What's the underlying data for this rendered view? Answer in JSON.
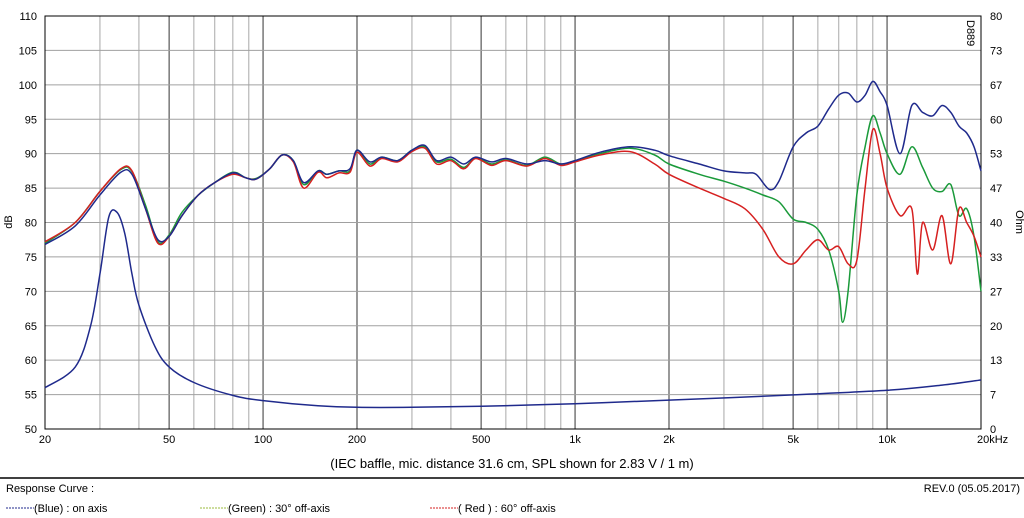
{
  "chart_data": {
    "type": "line",
    "x_scale": "log",
    "caption": "(IEC baffle, mic. distance 31.6 cm, SPL shown for 2.83 V / 1 m)",
    "watermark": "D889",
    "xlim": [
      20,
      20000
    ],
    "ylim_left": [
      50,
      110
    ],
    "ylim_right": [
      0,
      80
    ],
    "ylabel_left": "dB",
    "ylabel_right": "Ohm",
    "grid": true,
    "x_ticks": [
      {
        "value": 20,
        "label": "20"
      },
      {
        "value": 50,
        "label": "50"
      },
      {
        "value": 100,
        "label": "100"
      },
      {
        "value": 200,
        "label": "200"
      },
      {
        "value": 500,
        "label": "500"
      },
      {
        "value": 1000,
        "label": "1k"
      },
      {
        "value": 2000,
        "label": "2k"
      },
      {
        "value": 5000,
        "label": "5k"
      },
      {
        "value": 10000,
        "label": "10k"
      },
      {
        "value": 20000,
        "label": "20kHz"
      }
    ],
    "y_ticks_left": [
      "110",
      "105",
      "100",
      "95",
      "90",
      "85",
      "80",
      "75",
      "70",
      "65",
      "60",
      "55",
      "50"
    ],
    "y_ticks_right": [
      "80",
      "73",
      "67",
      "60",
      "53",
      "47",
      "40",
      "33",
      "27",
      "20",
      "13",
      "7",
      "0"
    ],
    "series": [
      {
        "name": "(Blue) : on axis",
        "color": "#1f2a8c",
        "axis": "left",
        "points": [
          [
            20,
            76.8
          ],
          [
            25,
            79.5
          ],
          [
            30,
            84
          ],
          [
            35,
            87.3
          ],
          [
            38,
            87
          ],
          [
            42,
            82
          ],
          [
            46,
            77.5
          ],
          [
            50,
            78
          ],
          [
            55,
            81
          ],
          [
            62,
            84
          ],
          [
            70,
            85.8
          ],
          [
            80,
            87.2
          ],
          [
            88,
            86.5
          ],
          [
            95,
            86.3
          ],
          [
            105,
            87.8
          ],
          [
            115,
            89.8
          ],
          [
            125,
            89
          ],
          [
            135,
            85.8
          ],
          [
            150,
            87.5
          ],
          [
            160,
            87
          ],
          [
            175,
            87.5
          ],
          [
            190,
            87.8
          ],
          [
            200,
            90.5
          ],
          [
            220,
            88.8
          ],
          [
            240,
            89.5
          ],
          [
            270,
            89
          ],
          [
            300,
            90.5
          ],
          [
            330,
            91.2
          ],
          [
            360,
            89
          ],
          [
            400,
            89.5
          ],
          [
            440,
            88.5
          ],
          [
            480,
            89.5
          ],
          [
            540,
            88.8
          ],
          [
            600,
            89.3
          ],
          [
            700,
            88.5
          ],
          [
            800,
            89
          ],
          [
            900,
            88.5
          ],
          [
            1000,
            89
          ],
          [
            1200,
            90.2
          ],
          [
            1500,
            91
          ],
          [
            1800,
            90.5
          ],
          [
            2000,
            89.7
          ],
          [
            2500,
            88.5
          ],
          [
            3000,
            87.5
          ],
          [
            3500,
            87.2
          ],
          [
            3800,
            87
          ],
          [
            4200,
            84.8
          ],
          [
            4500,
            86
          ],
          [
            5000,
            91
          ],
          [
            5500,
            93
          ],
          [
            6000,
            94
          ],
          [
            6500,
            96.5
          ],
          [
            7000,
            98.5
          ],
          [
            7500,
            98.8
          ],
          [
            8000,
            97.5
          ],
          [
            8500,
            98.5
          ],
          [
            9000,
            100.5
          ],
          [
            9500,
            99
          ],
          [
            10000,
            97
          ],
          [
            11000,
            90
          ],
          [
            12000,
            97
          ],
          [
            13000,
            96
          ],
          [
            14000,
            95.5
          ],
          [
            15000,
            97
          ],
          [
            16000,
            96
          ],
          [
            17000,
            94
          ],
          [
            18000,
            93
          ],
          [
            19000,
            91
          ],
          [
            20000,
            87.5
          ]
        ]
      },
      {
        "name": "(Green) : 30° off-axis",
        "color": "#1a9a3a",
        "axis": "left",
        "points": [
          [
            20,
            77
          ],
          [
            25,
            80
          ],
          [
            30,
            84.5
          ],
          [
            35,
            87.7
          ],
          [
            38,
            87.4
          ],
          [
            42,
            82.5
          ],
          [
            46,
            77.2
          ],
          [
            50,
            78.2
          ],
          [
            55,
            81.5
          ],
          [
            62,
            84
          ],
          [
            70,
            85.8
          ],
          [
            80,
            87.3
          ],
          [
            88,
            86.5
          ],
          [
            95,
            86.4
          ],
          [
            105,
            87.8
          ],
          [
            115,
            89.8
          ],
          [
            125,
            89
          ],
          [
            135,
            85.5
          ],
          [
            150,
            87.5
          ],
          [
            160,
            87
          ],
          [
            175,
            87.5
          ],
          [
            190,
            87.5
          ],
          [
            200,
            90.5
          ],
          [
            220,
            88.5
          ],
          [
            240,
            89.5
          ],
          [
            270,
            89
          ],
          [
            300,
            90.5
          ],
          [
            330,
            91
          ],
          [
            360,
            88.8
          ],
          [
            400,
            89.2
          ],
          [
            440,
            88
          ],
          [
            480,
            89.4
          ],
          [
            540,
            88.5
          ],
          [
            600,
            89.1
          ],
          [
            700,
            88.3
          ],
          [
            800,
            89.5
          ],
          [
            900,
            88.5
          ],
          [
            1000,
            89
          ],
          [
            1200,
            90
          ],
          [
            1500,
            90.8
          ],
          [
            1800,
            89.8
          ],
          [
            2000,
            88.5
          ],
          [
            2500,
            87
          ],
          [
            3000,
            86
          ],
          [
            3500,
            85
          ],
          [
            4000,
            84
          ],
          [
            4500,
            83
          ],
          [
            5000,
            80.5
          ],
          [
            5500,
            80
          ],
          [
            6000,
            79
          ],
          [
            6500,
            76
          ],
          [
            7000,
            70
          ],
          [
            7200,
            65.5
          ],
          [
            7500,
            70
          ],
          [
            8000,
            84
          ],
          [
            8500,
            91
          ],
          [
            9000,
            95.5
          ],
          [
            9500,
            93
          ],
          [
            10000,
            90
          ],
          [
            11000,
            87
          ],
          [
            12000,
            91
          ],
          [
            13000,
            88
          ],
          [
            14000,
            85
          ],
          [
            15000,
            84.5
          ],
          [
            16000,
            85.5
          ],
          [
            17000,
            81
          ],
          [
            18000,
            82
          ],
          [
            19000,
            78
          ],
          [
            20000,
            70
          ]
        ]
      },
      {
        "name": "( Red ) : 60° off-axis",
        "color": "#d62020",
        "axis": "left",
        "points": [
          [
            20,
            77.2
          ],
          [
            25,
            80
          ],
          [
            30,
            84.5
          ],
          [
            35,
            87.8
          ],
          [
            38,
            87.5
          ],
          [
            42,
            82
          ],
          [
            46,
            77
          ],
          [
            50,
            78
          ],
          [
            55,
            81
          ],
          [
            62,
            84
          ],
          [
            70,
            85.8
          ],
          [
            80,
            87
          ],
          [
            88,
            86.5
          ],
          [
            95,
            86.3
          ],
          [
            105,
            87.8
          ],
          [
            115,
            89.8
          ],
          [
            125,
            88.8
          ],
          [
            135,
            85
          ],
          [
            150,
            87.3
          ],
          [
            160,
            86.5
          ],
          [
            175,
            87.2
          ],
          [
            190,
            87.3
          ],
          [
            200,
            90.2
          ],
          [
            220,
            88.2
          ],
          [
            240,
            89.3
          ],
          [
            270,
            88.8
          ],
          [
            300,
            90.3
          ],
          [
            330,
            90.8
          ],
          [
            360,
            88.5
          ],
          [
            400,
            89
          ],
          [
            440,
            87.8
          ],
          [
            480,
            89.3
          ],
          [
            540,
            88.3
          ],
          [
            600,
            89
          ],
          [
            700,
            88.2
          ],
          [
            800,
            89.3
          ],
          [
            900,
            88.3
          ],
          [
            1000,
            88.8
          ],
          [
            1200,
            89.8
          ],
          [
            1500,
            90.3
          ],
          [
            1800,
            88.5
          ],
          [
            2000,
            87
          ],
          [
            2500,
            85
          ],
          [
            3000,
            83.5
          ],
          [
            3500,
            82
          ],
          [
            4000,
            79
          ],
          [
            4500,
            75
          ],
          [
            5000,
            74
          ],
          [
            5500,
            76
          ],
          [
            6000,
            77.5
          ],
          [
            6500,
            76
          ],
          [
            7000,
            76.5
          ],
          [
            7500,
            74
          ],
          [
            8000,
            74.5
          ],
          [
            8500,
            85
          ],
          [
            9000,
            93.5
          ],
          [
            9500,
            90
          ],
          [
            10000,
            85
          ],
          [
            11000,
            81
          ],
          [
            12000,
            82
          ],
          [
            12500,
            72.5
          ],
          [
            13000,
            80
          ],
          [
            14000,
            76
          ],
          [
            15000,
            81
          ],
          [
            16000,
            74
          ],
          [
            17000,
            82
          ],
          [
            18000,
            80
          ],
          [
            19000,
            78
          ],
          [
            20000,
            75
          ]
        ]
      },
      {
        "name": "impedance",
        "color": "#1f2a8c",
        "axis": "right",
        "points": [
          [
            20,
            8
          ],
          [
            25,
            12
          ],
          [
            28,
            20
          ],
          [
            30,
            30
          ],
          [
            32,
            41
          ],
          [
            34,
            42
          ],
          [
            36,
            38
          ],
          [
            38,
            30
          ],
          [
            40,
            24
          ],
          [
            45,
            16
          ],
          [
            50,
            12
          ],
          [
            60,
            9
          ],
          [
            80,
            6.5
          ],
          [
            100,
            5.5
          ],
          [
            150,
            4.5
          ],
          [
            200,
            4.2
          ],
          [
            300,
            4.2
          ],
          [
            500,
            4.4
          ],
          [
            1000,
            4.9
          ],
          [
            2000,
            5.6
          ],
          [
            5000,
            6.6
          ],
          [
            10000,
            7.5
          ],
          [
            15000,
            8.5
          ],
          [
            20000,
            9.5
          ]
        ]
      }
    ]
  },
  "footer": {
    "title": "Response Curve :",
    "revision": "REV.0 (05.05.2017)",
    "legend": [
      {
        "label": "(Blue) : on axis",
        "color": "#1f2a8c"
      },
      {
        "label": "(Green) : 30° off-axis",
        "color": "#9bbb3c"
      },
      {
        "label": "( Red ) : 60° off-axis",
        "color": "#d62020"
      }
    ]
  }
}
